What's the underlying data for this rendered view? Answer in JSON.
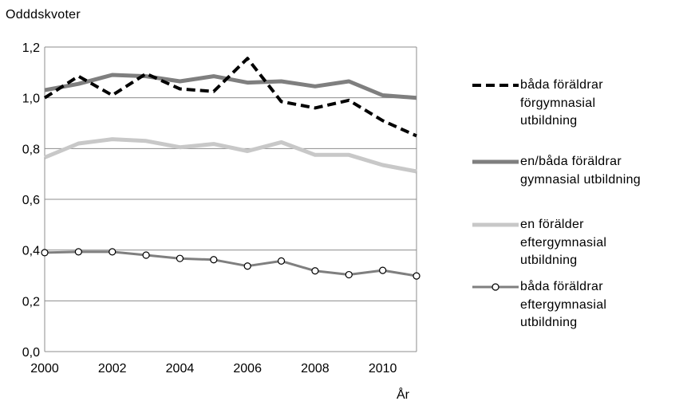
{
  "chart_data": {
    "type": "line",
    "title": "",
    "ylabel": "Odddskvoter",
    "xlabel": "År",
    "x": [
      2000,
      2001,
      2002,
      2003,
      2004,
      2005,
      2006,
      2007,
      2008,
      2009,
      2010,
      2011
    ],
    "xlim": [
      2000,
      2011
    ],
    "ylim": [
      0,
      1.2
    ],
    "x_ticks": [
      "2000",
      "2002",
      "2004",
      "2006",
      "2008",
      "2010"
    ],
    "y_ticks": [
      "0,0",
      "0,2",
      "0,4",
      "0,6",
      "0,8",
      "1,0",
      "1,2"
    ],
    "grid": "horizontal",
    "legend_position": "right",
    "series": [
      {
        "name": "båda föräldrar\nförgymnasial\nutbildning",
        "values": [
          1.0,
          1.085,
          1.01,
          1.095,
          1.035,
          1.025,
          1.155,
          0.985,
          0.96,
          0.99,
          0.91,
          0.85
        ],
        "color": "#000000",
        "style": "dashed"
      },
      {
        "name": "en/båda föräldrar\ngymnasial utbildning",
        "values": [
          1.03,
          1.055,
          1.09,
          1.085,
          1.065,
          1.085,
          1.06,
          1.065,
          1.045,
          1.065,
          1.01,
          1.0
        ],
        "color": "#7f7f7f",
        "style": "solid"
      },
      {
        "name": "en förälder\neftergymnasial\nutbildning",
        "values": [
          0.765,
          0.82,
          0.837,
          0.83,
          0.805,
          0.818,
          0.79,
          0.825,
          0.775,
          0.775,
          0.735,
          0.71
        ],
        "color": "#c8c8c8",
        "style": "solid"
      },
      {
        "name": "båda föräldrar\neftergymnasial\nutbildning",
        "values": [
          0.39,
          0.393,
          0.393,
          0.38,
          0.367,
          0.362,
          0.337,
          0.357,
          0.318,
          0.303,
          0.32,
          0.298
        ],
        "color": "#7f7f7f",
        "style": "markers"
      }
    ]
  }
}
